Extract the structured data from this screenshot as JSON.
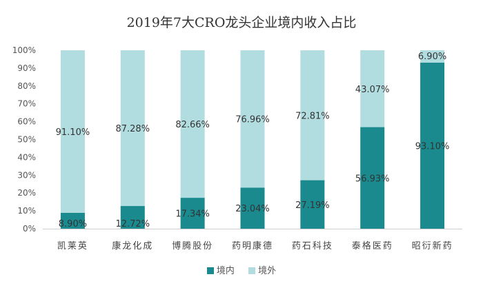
{
  "chart_data": {
    "type": "bar",
    "stacked": true,
    "title": "2019年7大CRO龙头企业境内收入占比",
    "categories": [
      "凯莱英",
      "康龙化成",
      "博腾股份",
      "药明康德",
      "药石科技",
      "泰格医药",
      "昭衍新药"
    ],
    "series": [
      {
        "name": "境内",
        "color": "#1a8a8f",
        "values": [
          8.9,
          12.72,
          17.34,
          23.04,
          27.19,
          56.93,
          93.1
        ],
        "labels": [
          "8.90%",
          "12.72%",
          "17.34%",
          "23.04%",
          "27.19%",
          "56.93%",
          "93.10%"
        ]
      },
      {
        "name": "境外",
        "color": "#b2dde0",
        "values": [
          91.1,
          87.28,
          82.66,
          76.96,
          72.81,
          43.07,
          6.9
        ],
        "labels": [
          "91.10%",
          "87.28%",
          "82.66%",
          "76.96%",
          "72.81%",
          "43.07%",
          "6.90%"
        ]
      }
    ],
    "ylim": [
      0,
      100
    ],
    "yticks": [
      "0%",
      "10%",
      "20%",
      "30%",
      "40%",
      "50%",
      "60%",
      "70%",
      "80%",
      "90%",
      "100%"
    ],
    "grid": false,
    "legend": "bottom"
  }
}
